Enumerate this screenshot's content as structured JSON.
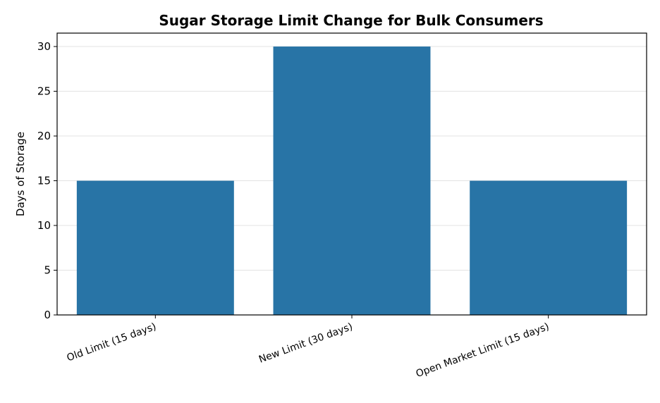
{
  "chart_data": {
    "type": "bar",
    "title": "Sugar Storage Limit Change for Bulk Consumers",
    "xlabel": "",
    "ylabel": "Days of Storage",
    "categories": [
      "Old Limit (15 days)",
      "New Limit (30 days)",
      "Open Market Limit (15 days)"
    ],
    "values": [
      15,
      30,
      15
    ],
    "ylim": [
      0,
      31.5
    ],
    "yticks": [
      0,
      5,
      10,
      15,
      20,
      25,
      30
    ],
    "grid": true,
    "bar_color": "#2874a6",
    "legend": "none"
  }
}
